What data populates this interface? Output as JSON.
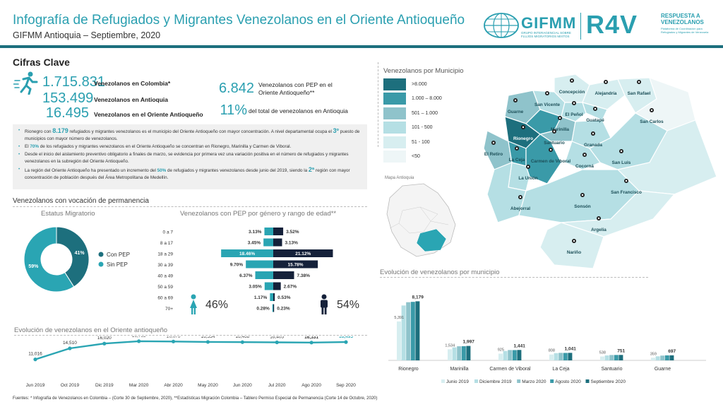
{
  "header": {
    "title": "Infografía de Refugiados y Migrantes Venezolanos en el Oriente Antioqueño",
    "subtitle": "GIFMM Antioquia – Septiembre, 2020",
    "gifmm_name": "GIFMM",
    "gifmm_sub": "GRUPO INTERAGENCIAL SOBRE FLUJOS MIGRATORIOS MIXTOS",
    "r4v_name": "R4V",
    "r4v_resp": "RESPUESTA A VENEZOLANOS",
    "r4v_sub": "Plataforma de Coordinación para Refugiados y Migrantes de Venezuela"
  },
  "cifras": {
    "heading": "Cifras Clave",
    "items": [
      {
        "value": "1.715.831",
        "label": "Venezolanos en Colombia*"
      },
      {
        "value": "153.499",
        "label": "Venezolanos en Antioquia"
      },
      {
        "value": "16.495",
        "label": "Venezolanos en el Oriente Antioqueño"
      }
    ],
    "pep_value": "6.842",
    "pep_label": "Venezolanos con PEP en el Oriente Antioqueño**",
    "pct_value": "11%",
    "pct_label": "del total de venezolanos en Antioquia"
  },
  "bullets": {
    "b1_pre": "Rionegro con ",
    "b1_num": "8.179",
    "b1_post": " refugiados y migrantes venezolanos es el municipio del Oriente Antioqueño con mayor concentración. A nivel departamental ocupa el ",
    "b1_rank": "3º",
    "b1_end": " puesto de municipios con mayor número de venezolanos.",
    "b2_pre": "El ",
    "b2_num": "70%",
    "b2_post": " de los refugiados y migrantes venezolanos en el Oriente Antioqueño se concentran en Rionegro, Marinilla y Carmen de Viboral.",
    "b3": "Desde el inicio del aislamiento preventivo obligatorio a finales de marzo, se evidencia por primera vez una variación positiva en el número de refugiados y migrantes venezolanos en la subregión del Oriente Antioqueño.",
    "b4_pre": "La región del Oriente Antioqueño ha presentado un incremento del ",
    "b4_num": "50%",
    "b4_post": " de refugiados y migrantes venezolanos desde junio del 2019, siendo la ",
    "b4_rank": "2ª",
    "b4_end": " región con mayor concentración de población después del Área Metropolitana de Medellín."
  },
  "vocacion": {
    "heading": "Venezolanos con vocación de permanencia",
    "estatus_title": "Estatus Migratorio",
    "piramide_title": "Venezolanos con PEP por género y rango de edad**",
    "female_pct": "46%",
    "male_pct": "54%"
  },
  "mapa": {
    "title": "Venezolanos por Municipio",
    "legend": [
      ">8.000",
      "1.000 – 8.000",
      "501 – 1.000",
      "101 - 500",
      "51 - 100",
      "<50"
    ],
    "legend_colors": [
      "#1d6f7d",
      "#3a9aa8",
      "#8fc3cb",
      "#b5dfe4",
      "#d7eef0",
      "#eef6f7"
    ],
    "inset_label": "Mapa Antioquia",
    "municipios": [
      "Concepción",
      "Alejandría",
      "San Rafael",
      "Guarne",
      "San Vicente",
      "El Peñol",
      "Guatapé",
      "San Carlos",
      "Rionegro",
      "Marinilla",
      "Santuario",
      "Granada",
      "El Retiro",
      "La Ceja",
      "Carmen de Viboral",
      "Cocorná",
      "San Luis",
      "La Unión",
      "San Francisco",
      "Abejorral",
      "Sonsón",
      "Argelia",
      "Nariño"
    ]
  },
  "chart_data": [
    {
      "type": "pie",
      "title": "Estatus Migratorio",
      "categories": [
        "Con PEP",
        "Sin PEP"
      ],
      "values": [
        41,
        59
      ],
      "labels": [
        "41%",
        "59%"
      ],
      "colors": [
        "#1d6f7d",
        "#2aa5b3"
      ]
    },
    {
      "type": "bar",
      "title": "Venezolanos con PEP por género y rango de edad**",
      "categories": [
        "0 a 7",
        "8 a 17",
        "18 a 29",
        "30 a 39",
        "40 a 49",
        "50 a 59",
        "60 a 69",
        "70+"
      ],
      "series": [
        {
          "name": "Mujeres",
          "values": [
            3.13,
            3.45,
            18.46,
            9.7,
            6.37,
            3.05,
            1.17,
            0.28
          ],
          "labels": [
            "3.13%",
            "3.45%",
            "18.46%",
            "9.70%",
            "6.37%",
            "3.05%",
            "1.17%",
            "0.28%"
          ]
        },
        {
          "name": "Hombres",
          "values": [
            3.52,
            3.13,
            21.12,
            15.78,
            7.38,
            2.67,
            0.53,
            0.23
          ],
          "labels": [
            "3.52%",
            "3.13%",
            "21.12%",
            "15.78%",
            "7.38%",
            "2.67%",
            "0.53%",
            "0.23%"
          ]
        }
      ],
      "colors": [
        "#2aa5b3",
        "#15213a"
      ]
    },
    {
      "type": "line",
      "title": "Evolución de venezolanos en el Oriente antioqueño",
      "categories": [
        "Jun 2019",
        "Oct 2019",
        "Dic 2019",
        "Mar 2020",
        "Abr 2020",
        "May 2020",
        "Jun 2020",
        "Jul 2020",
        "Ago 2020",
        "Sep 2020"
      ],
      "values": [
        11016,
        14510,
        16020,
        16763,
        16673,
        16534,
        16468,
        16405,
        16331,
        16495
      ],
      "labels": [
        "11,016",
        "14,510",
        "16,020",
        "16,763",
        "16,673",
        "16,534",
        "16,468",
        "16,405",
        "16,331",
        "16,495"
      ],
      "ylim": [
        0,
        20000
      ]
    },
    {
      "type": "bar",
      "title": "Evolución de venezolanos por municipio",
      "categories": [
        "Rionegro",
        "Marinilla",
        "Carmen de Viboral",
        "La Ceja",
        "Santuario",
        "Guarne"
      ],
      "series": [
        {
          "name": "Junio 2019",
          "values": [
            5391,
            1534,
            925,
            808,
            538,
            359
          ]
        },
        {
          "name": "Diciembre 2019",
          "values": [
            7600,
            1800,
            1300,
            1000,
            680,
            560
          ]
        },
        {
          "name": "Marzo 2020",
          "values": [
            8050,
            1950,
            1430,
            1040,
            740,
            660
          ]
        },
        {
          "name": "Agosto 2020",
          "values": [
            8100,
            1960,
            1420,
            1030,
            745,
            690
          ]
        },
        {
          "name": "Septiembre 2020",
          "values": [
            8179,
            1997,
            1441,
            1041,
            751,
            697
          ]
        }
      ],
      "first_labels": [
        "5,391",
        "1,534",
        "925",
        "808",
        "538",
        "359"
      ],
      "last_labels": [
        "8,179",
        "1,997",
        "1,441",
        "1,041",
        "751",
        "697"
      ],
      "colors": [
        "#d7eef0",
        "#b5dfe4",
        "#8fc3cb",
        "#3a9aa8",
        "#1d6f7d"
      ],
      "ylim": [
        0,
        9000
      ]
    }
  ],
  "footer": "Fuentes: * Infografía de Venezolanos en Colombia – (Corte 30 de Septiembre, 2020), **Estadísticas Migración Colombia – Tablero Permiso Especial de Permanencia (Corte 14 de Octubre, 2020)"
}
